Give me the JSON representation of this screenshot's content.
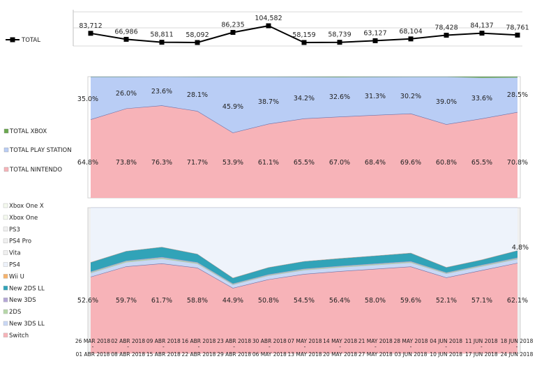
{
  "chart_data": {
    "type": "line",
    "categories": [
      "26 MAR 2018 - 01 ABR 2018",
      "02 ABR 2018 - 08 ABR 2018",
      "09 ABR 2018 - 15 ABR 2018",
      "16 ABR 2018 - 22 ABR 2018",
      "23 ABR 2018 - 29 ABR 2018",
      "30 ABR 2018 - 06 MAY 2018",
      "07 MAY 2018 - 13 MAY 2018",
      "14 MAY 2018 - 20 MAY 2018",
      "21 MAY 2018 - 27 MAY 2018",
      "28 MAY 2018 - 03 JUN 2018",
      "04 JUN 2018 - 10 JUN 2018",
      "11 JUN 2018 - 17 JUN 2018",
      "18 JUN 2018 - 24 JUN 2018"
    ],
    "date_start": [
      "26 MAR 2018",
      "02 ABR 2018",
      "09 ABR 2018",
      "16 ABR 2018",
      "23 ABR 2018",
      "30 ABR 2018",
      "07 MAY 2018",
      "14 MAY 2018",
      "21 MAY 2018",
      "28 MAY 2018",
      "04 JUN 2018",
      "11 JUN 2018",
      "18 JUN 2018"
    ],
    "date_end": [
      "01 ABR 2018",
      "08 ABR 2018",
      "15 ABR 2018",
      "22 ABR 2018",
      "29 ABR 2018",
      "06 MAY 2018",
      "13 MAY 2018",
      "20 MAY 2018",
      "27 MAY 2018",
      "03 JUN 2018",
      "10 JUN 2018",
      "17 JUN 2018",
      "24 JUN 2018"
    ],
    "panels": [
      {
        "type": "line",
        "series": [
          {
            "name": "TOTAL",
            "color": "#000000",
            "values": [
              83712,
              66986,
              58811,
              58092,
              86235,
              104582,
              58159,
              58739,
              63127,
              68104,
              78428,
              84137,
              78761
            ]
          }
        ],
        "labels": [
          "83,712",
          "66,986",
          "58,811",
          "58,092",
          "86,235",
          "104,582",
          "58,159",
          "58,739",
          "63,127",
          "68,104",
          "78,428",
          "84,137",
          "78,761"
        ]
      },
      {
        "type": "area",
        "stacked_percent": true,
        "series": [
          {
            "name": "TOTAL NINTENDO",
            "color": "#f7b3b8",
            "values": [
              64.8,
              73.8,
              76.3,
              71.7,
              53.9,
              61.1,
              65.5,
              67.0,
              68.4,
              69.6,
              60.8,
              65.5,
              70.8
            ]
          },
          {
            "name": "TOTAL PLAY STATION",
            "color": "#b9cdf5",
            "values": [
              35.0,
              26.0,
              23.6,
              28.1,
              45.9,
              38.7,
              34.2,
              32.6,
              31.3,
              30.2,
              39.0,
              33.6,
              28.5
            ]
          },
          {
            "name": "TOTAL XBOX",
            "color": "#6aa84f",
            "values": [
              0.2,
              0.2,
              0.1,
              0.2,
              0.2,
              0.2,
              0.3,
              0.4,
              0.3,
              0.2,
              0.2,
              0.9,
              0.7
            ]
          }
        ],
        "nintendo_labels": [
          "64.8%",
          "73.8%",
          "76.3%",
          "71.7%",
          "53.9%",
          "61.1%",
          "65.5%",
          "67.0%",
          "68.4%",
          "69.6%",
          "60.8%",
          "65.5%",
          "70.8%"
        ],
        "playstation_labels": [
          "35.0%",
          "26.0%",
          "23.6%",
          "28.1%",
          "45.9%",
          "38.7%",
          "34.2%",
          "32.6%",
          "31.3%",
          "30.2%",
          "39.0%",
          "33.6%",
          "28.5%"
        ]
      },
      {
        "type": "area",
        "stacked_percent": true,
        "series": [
          {
            "name": "Switch",
            "color": "#f7b3b8",
            "values": [
              52.6,
              59.7,
              61.7,
              58.8,
              44.9,
              50.8,
              54.5,
              56.4,
              58.0,
              59.6,
              52.1,
              57.1,
              62.1
            ]
          },
          {
            "name": "New 3DS LL",
            "color": "#c9d8f5",
            "values": [
              2.5,
              2.8,
              3.2,
              2.7,
              2.2,
              2.5,
              2.6,
              2.6,
              2.6,
              2.6,
              2.6,
              2.6,
              2.6
            ]
          },
          {
            "name": "2DS",
            "color": "#b6d7a8",
            "values": [
              0.6,
              0.7,
              0.7,
              0.6,
              0.5,
              0.5,
              0.6,
              0.6,
              0.6,
              0.6,
              0.5,
              0.6,
              0.6
            ]
          },
          {
            "name": "New 3DS",
            "color": "#b4a7d6",
            "values": [
              0.4,
              0.4,
              0.5,
              0.4,
              0.3,
              0.4,
              0.4,
              0.4,
              0.4,
              0.4,
              0.3,
              0.4,
              0.4
            ]
          },
          {
            "name": "New 2DS LL",
            "color": "#31a3b8",
            "values": [
              6.3,
              6.5,
              6.8,
              5.6,
              3.8,
              4.7,
              5.0,
              5.1,
              5.3,
              5.6,
              3.5,
              3.5,
              4.8
            ]
          },
          {
            "name": "Wii U",
            "color": "#f6b26b",
            "values": [
              0.2,
              0.2,
              0.2,
              0.2,
              0.2,
              0.2,
              0.2,
              0.2,
              0.2,
              0.2,
              0.2,
              0.2,
              0.2
            ]
          },
          {
            "name": "PS4",
            "color": "#eef3fb",
            "values": [
              37.4,
              29.7,
              26.9,
              31.7,
              48.1,
              40.9,
              36.7,
              34.7,
              32.9,
              31.0,
              40.8,
              35.6,
              29.3
            ]
          }
        ],
        "legend_only": [
          "Xbox One X",
          "Xbox One",
          "PS3",
          "PS4 Pro",
          "Vita"
        ],
        "switch_labels": [
          "52.6%",
          "59.7%",
          "61.7%",
          "58.8%",
          "44.9%",
          "50.8%",
          "54.5%",
          "56.4%",
          "58.0%",
          "59.6%",
          "52.1%",
          "57.1%",
          "62.1%"
        ],
        "extra_label": "4.8%"
      }
    ],
    "legend": {
      "top": [
        {
          "name": "TOTAL",
          "color": "#000000"
        }
      ],
      "middle": [
        {
          "name": "TOTAL XBOX",
          "color": "#6aa84f"
        },
        {
          "name": "TOTAL PLAY STATION",
          "color": "#b9cdf5"
        },
        {
          "name": "TOTAL NINTENDO",
          "color": "#f7b3b8"
        }
      ],
      "bottom": [
        {
          "name": "Xbox One X",
          "color": "#f4f9ee"
        },
        {
          "name": "Xbox One",
          "color": "#f4f9ee"
        },
        {
          "name": "PS3",
          "color": "#f0f0f0"
        },
        {
          "name": "PS4 Pro",
          "color": "#f0f0f0"
        },
        {
          "name": "Vita",
          "color": "#f0f0f0"
        },
        {
          "name": "PS4",
          "color": "#eef3fb"
        },
        {
          "name": "Wii U",
          "color": "#f6b26b"
        },
        {
          "name": "New 2DS LL",
          "color": "#31a3b8"
        },
        {
          "name": "New 3DS",
          "color": "#b4a7d6"
        },
        {
          "name": "2DS",
          "color": "#b6d7a8"
        },
        {
          "name": "New 3DS LL",
          "color": "#c9d8f5"
        },
        {
          "name": "Switch",
          "color": "#f7b3b8"
        }
      ]
    },
    "grid": true
  }
}
